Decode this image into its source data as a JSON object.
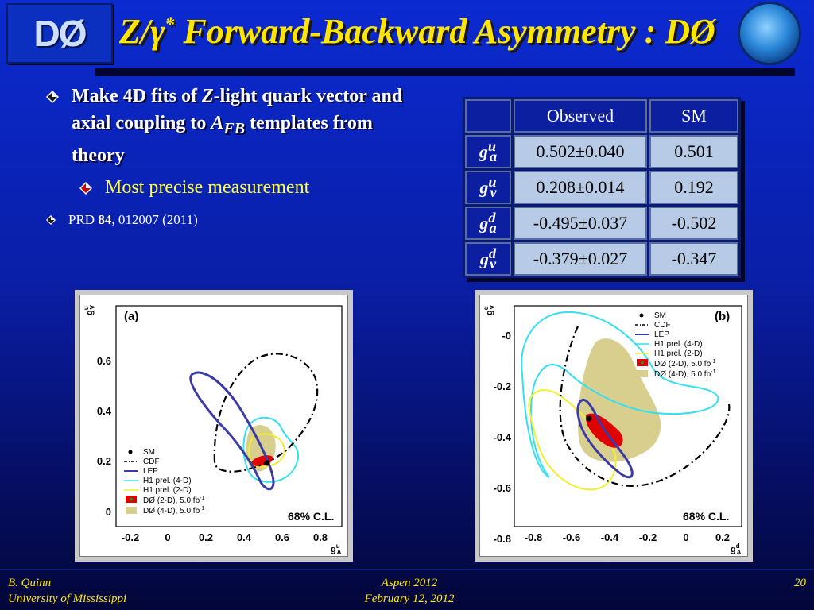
{
  "header": {
    "logo": "DØ",
    "title_main": "Z/γ",
    "title_sup": "*",
    "title_rest": " Forward-Backward Asymmetry : DØ"
  },
  "bullets": {
    "b1_part1": "Make 4D fits of ",
    "b1_z": "Z",
    "b1_part2": "-light quark vector and axial coupling to ",
    "b1_afb": "A",
    "b1_afb_sub": "FB",
    "b1_part3": " templates from theory",
    "b2": "Most precise measurement",
    "b3_part1": "PRD ",
    "b3_vol": "84",
    "b3_part2": ", 012007 (2011)"
  },
  "table": {
    "headers": [
      "Observed",
      "SM"
    ],
    "rows": [
      {
        "label": "g",
        "sup": "u",
        "sub": "a",
        "observed": "0.502±0.040",
        "sm": "0.501"
      },
      {
        "label": "g",
        "sup": "u",
        "sub": "v",
        "observed": "0.208±0.014",
        "sm": "0.192"
      },
      {
        "label": "g",
        "sup": "d",
        "sub": "a",
        "observed": "-0.495±0.037",
        "sm": "-0.502"
      },
      {
        "label": "g",
        "sup": "d",
        "sub": "v",
        "observed": "-0.379±0.027",
        "sm": "-0.347"
      }
    ]
  },
  "plot_a": {
    "panel": "(a)",
    "ylabel": "g",
    "ylabel_sup": "u",
    "ylabel_sub": "V",
    "xlabel": "g",
    "xlabel_sup": "u",
    "xlabel_sub": "A",
    "xticks": [
      "-0.2",
      "0",
      "0.2",
      "0.4",
      "0.6",
      "0.8"
    ],
    "yticks": [
      "0",
      "0.2",
      "0.4",
      "0.6"
    ],
    "cl": "68% C.L.",
    "legend": [
      "SM",
      "CDF",
      "LEP",
      "H1 prel. (4-D)",
      "H1 prel. (2-D)",
      "DØ (2-D), 5.0 fb",
      "DØ (4-D), 5.0 fb"
    ],
    "legend_unit_sup": "-1"
  },
  "plot_b": {
    "panel": "(b)",
    "ylabel": "g",
    "ylabel_sup": "d",
    "ylabel_sub": "V",
    "xlabel": "g",
    "xlabel_sup": "d",
    "xlabel_sub": "A",
    "xticks": [
      "-0.8",
      "-0.6",
      "-0.4",
      "-0.2",
      "0",
      "0.2"
    ],
    "yticks": [
      "-0",
      "-0.2",
      "-0.4",
      "-0.6",
      "-0.8"
    ],
    "cl": "68% C.L.",
    "legend": [
      "SM",
      "CDF",
      "LEP",
      "H1 prel. (4-D)",
      "H1 prel. (2-D)",
      "DØ (2-D), 5.0 fb",
      "DØ (4-D), 5.0 fb"
    ],
    "legend_unit_sup": "-1"
  },
  "footer": {
    "author": "B. Quinn",
    "affiliation": "University of Mississippi",
    "venue": "Aspen 2012",
    "date": "February 12, 2012",
    "page": "20"
  },
  "colors": {
    "title": "#ffe600",
    "cdf": "#000000",
    "lep": "#3a3aa8",
    "h1_4d": "#33e0f0",
    "h1_2d": "#f0f030",
    "d0_2d": "#e00000",
    "d0_4d": "#d8cf8e"
  }
}
